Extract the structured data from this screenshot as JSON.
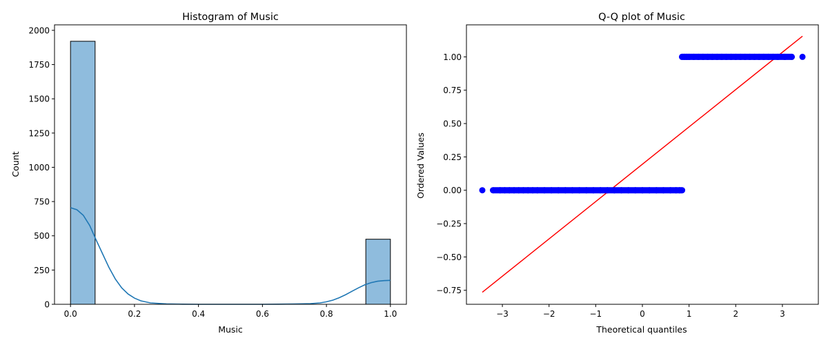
{
  "chart_data": [
    {
      "type": "bar",
      "title": "Histogram of Music",
      "xlabel": "Music",
      "ylabel": "Count",
      "xlim": [
        -0.05,
        1.05
      ],
      "ylim": [
        0,
        2040
      ],
      "xticks": [
        0.0,
        0.2,
        0.4,
        0.6,
        0.8,
        1.0
      ],
      "xtick_labels": [
        "0.0",
        "0.2",
        "0.4",
        "0.6",
        "0.8",
        "1.0"
      ],
      "yticks": [
        0,
        250,
        500,
        750,
        1000,
        1250,
        1500,
        1750,
        2000
      ],
      "ytick_labels": [
        "0",
        "250",
        "500",
        "750",
        "1000",
        "1250",
        "1500",
        "1750",
        "2000"
      ],
      "bin_width": 0.0769,
      "bins": [
        {
          "x0": 0.0,
          "x1": 0.0769,
          "count": 1920
        },
        {
          "x0": 0.9231,
          "x1": 1.0,
          "count": 475
        }
      ],
      "kde": {
        "x": [
          0.0,
          0.02,
          0.04,
          0.06,
          0.08,
          0.1,
          0.12,
          0.14,
          0.16,
          0.18,
          0.2,
          0.22,
          0.25,
          0.3,
          0.35,
          0.4,
          0.5,
          0.6,
          0.65,
          0.7,
          0.75,
          0.78,
          0.8,
          0.82,
          0.84,
          0.86,
          0.88,
          0.9,
          0.92,
          0.94,
          0.96,
          0.98,
          1.0
        ],
        "y": [
          705,
          690,
          650,
          575,
          470,
          370,
          270,
          185,
          120,
          75,
          45,
          25,
          10,
          3,
          1,
          0,
          0,
          0,
          1,
          2,
          5,
          10,
          18,
          30,
          48,
          70,
          95,
          120,
          142,
          158,
          168,
          173,
          175
        ]
      },
      "bar_color": "#8fbcdd",
      "kde_color": "#1f77b4"
    },
    {
      "type": "scatter",
      "title": "Q-Q plot of Music",
      "xlabel": "Theoretical quantiles",
      "ylabel": "Ordered Values",
      "xlim": [
        -3.77,
        3.77
      ],
      "ylim": [
        -0.855,
        1.24
      ],
      "xticks": [
        -3,
        -2,
        -1,
        0,
        1,
        2,
        3
      ],
      "xtick_labels": [
        "−3",
        "−2",
        "−1",
        "0",
        "1",
        "2",
        "3"
      ],
      "yticks": [
        -0.75,
        -0.5,
        -0.25,
        0.0,
        0.25,
        0.5,
        0.75,
        1.0
      ],
      "ytick_labels": [
        "−0.75",
        "−0.50",
        "−0.25",
        "0.00",
        "0.25",
        "0.50",
        "0.75",
        "1.00"
      ],
      "series": [
        {
          "x": [
            -3.43,
            -3.2,
            -3.05,
            -2.95,
            -2.85,
            -2.75,
            -2.65,
            -2.55,
            -2.45,
            -2.35,
            -2.25,
            -2.1,
            -1.95,
            -1.8,
            -1.65,
            -1.5,
            -1.35,
            -1.2,
            -1.05,
            -0.9,
            -0.75,
            -0.6,
            -0.45,
            -0.3,
            -0.15,
            0.0,
            0.15,
            0.3,
            0.45,
            0.6,
            0.72,
            0.8,
            0.85
          ],
          "y": [
            0,
            0,
            0,
            0,
            0,
            0,
            0,
            0,
            0,
            0,
            0,
            0,
            0,
            0,
            0,
            0,
            0,
            0,
            0,
            0,
            0,
            0,
            0,
            0,
            0,
            0,
            0,
            0,
            0,
            0,
            0,
            0,
            0
          ]
        },
        {
          "x": [
            0.85,
            0.9,
            0.95,
            1.0,
            1.1,
            1.2,
            1.3,
            1.4,
            1.5,
            1.6,
            1.7,
            1.8,
            1.9,
            2.0,
            2.1,
            2.2,
            2.3,
            2.4,
            2.5,
            2.6,
            2.7,
            2.8,
            2.9,
            3.05,
            3.2,
            3.43
          ],
          "y": [
            1,
            1,
            1,
            1,
            1,
            1,
            1,
            1,
            1,
            1,
            1,
            1,
            1,
            1,
            1,
            1,
            1,
            1,
            1,
            1,
            1,
            1,
            1,
            1,
            1,
            1
          ]
        }
      ],
      "fit_line": {
        "x": [
          -3.43,
          3.43
        ],
        "y": [
          -0.765,
          1.155
        ]
      },
      "point_color": "#0000ff",
      "line_color": "#ff0000"
    }
  ]
}
